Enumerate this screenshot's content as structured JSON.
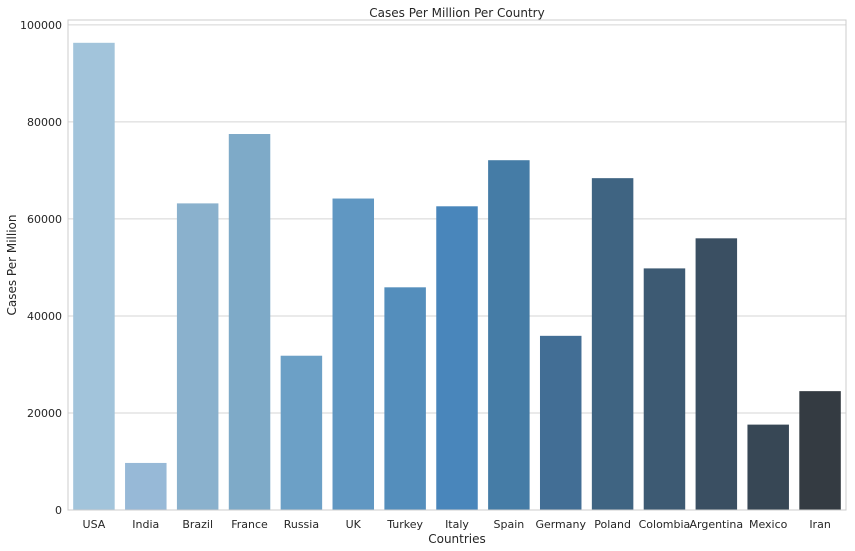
{
  "chart_data": {
    "type": "bar",
    "title": "Cases Per Million Per Country",
    "xlabel": "Countries",
    "ylabel": "Cases Per Million",
    "categories": [
      "USA",
      "India",
      "Brazil",
      "France",
      "Russia",
      "UK",
      "Turkey",
      "Italy",
      "Spain",
      "Germany",
      "Poland",
      "Colombia",
      "Argentina",
      "Mexico",
      "Iran"
    ],
    "values": [
      96300,
      9700,
      63200,
      77500,
      31800,
      64200,
      45900,
      62600,
      72100,
      35900,
      68400,
      49800,
      56000,
      17600,
      24500
    ],
    "colors": [
      "#a2c4db",
      "#97b9d7",
      "#8ab1cd",
      "#7eaac8",
      "#6ca0c6",
      "#6097c2",
      "#548ebc",
      "#4986bb",
      "#457ca6",
      "#426e95",
      "#3f6482",
      "#3d5a73",
      "#3a4f62",
      "#374755",
      "#343b42"
    ],
    "ylim": [
      0,
      101000
    ],
    "yticks": [
      0,
      20000,
      40000,
      60000,
      80000,
      100000
    ],
    "grid": true,
    "legend": "none"
  }
}
